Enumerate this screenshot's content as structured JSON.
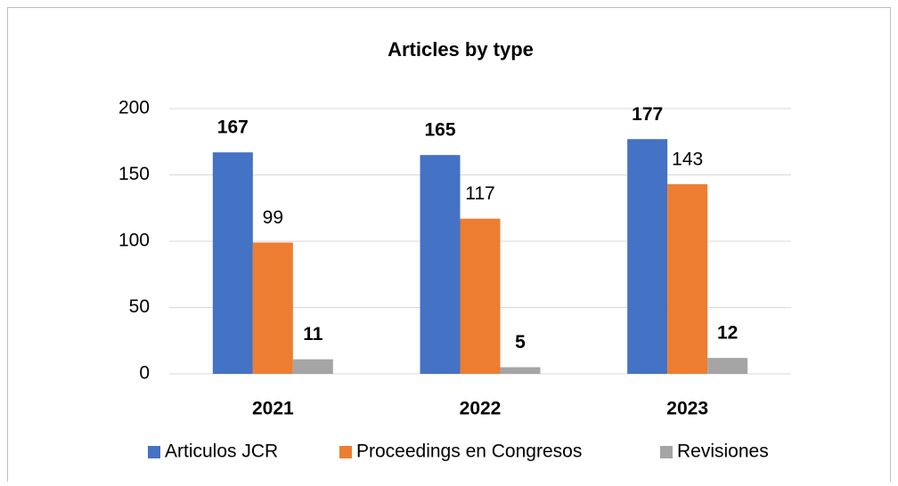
{
  "chart_data": {
    "type": "bar",
    "title": "Articles by type",
    "categories": [
      "2021",
      "2022",
      "2023"
    ],
    "series": [
      {
        "name": "Articulos JCR",
        "color": "#4472c4",
        "values": [
          167,
          165,
          177
        ],
        "bold_labels": true
      },
      {
        "name": "Proceedings en Congresos",
        "color": "#ed7d31",
        "values": [
          99,
          117,
          143
        ],
        "bold_labels": false
      },
      {
        "name": "Revisiones",
        "color": "#a5a5a5",
        "values": [
          11,
          5,
          12
        ],
        "bold_labels": true
      }
    ],
    "ylim": [
      0,
      200
    ],
    "yticks": [
      0,
      50,
      100,
      150,
      200
    ],
    "grid": true,
    "legend": "bottom"
  }
}
